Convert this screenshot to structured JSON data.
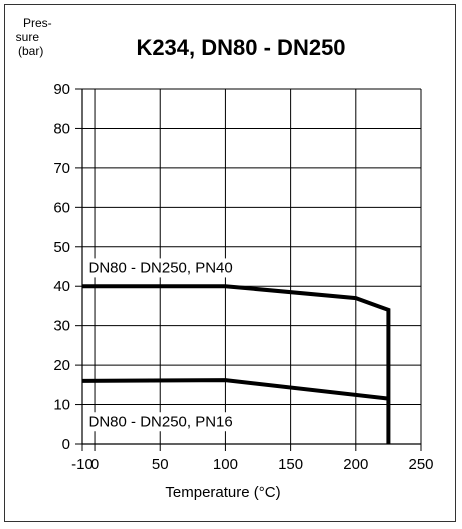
{
  "chart_data": {
    "type": "line",
    "title": "K234, DN80 - DN250",
    "ylabel": [
      "Pres-",
      "sure",
      "(bar)"
    ],
    "xlabel": "Temperature (°C)",
    "xlim": [
      -10,
      250
    ],
    "ylim": [
      0,
      90
    ],
    "x_ticks": [
      -10,
      0,
      50,
      100,
      150,
      200,
      250
    ],
    "y_ticks": [
      0,
      10,
      20,
      30,
      40,
      50,
      60,
      70,
      80,
      90
    ],
    "x_gridlines": [
      0,
      50,
      100,
      150,
      200,
      250
    ],
    "y_gridlines": [
      10,
      20,
      30,
      40,
      50,
      60,
      70,
      80,
      90
    ],
    "series": [
      {
        "name": "DN80 - DN250, PN40",
        "x": [
          -10,
          100,
          200,
          225,
          225
        ],
        "y": [
          40,
          40,
          37,
          34,
          0
        ]
      },
      {
        "name": "DN80 - DN250, PN16",
        "x": [
          -10,
          100,
          225
        ],
        "y": [
          16,
          16.2,
          11.5
        ]
      }
    ],
    "colors": {
      "line": "#000000",
      "grid": "#000000"
    }
  }
}
